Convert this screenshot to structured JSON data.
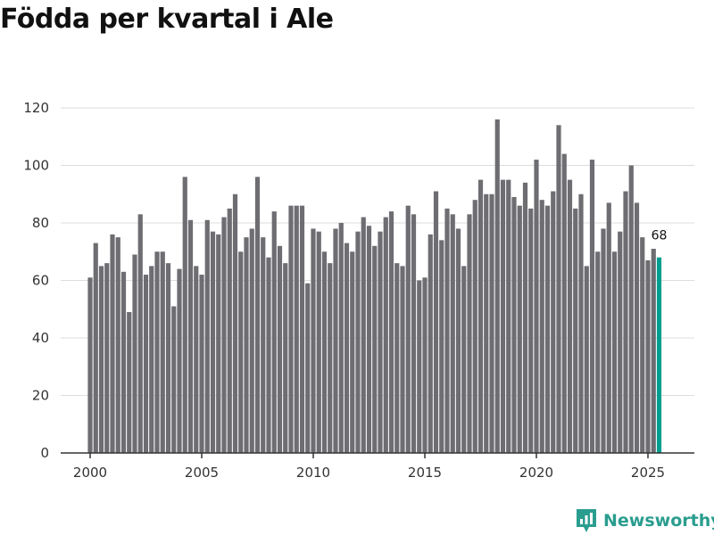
{
  "colors": {
    "bar": "#6e6d72",
    "highlight": "#009e8f",
    "grid": "#dddddd",
    "axis": "#333333",
    "brand": "#2a9d8f"
  },
  "brand": {
    "name": "Newsworthy",
    "icon": "newsworthy-logo-icon"
  },
  "chart_data": {
    "type": "bar",
    "title": "Födda per kvartal i Ale",
    "xlabel": "",
    "ylabel": "",
    "ylim": [
      0,
      120
    ],
    "yticks": [
      0,
      20,
      40,
      60,
      80,
      100,
      120
    ],
    "grid": true,
    "xticks": [
      {
        "label": "2000",
        "year": 2000
      },
      {
        "label": "2005",
        "year": 2005
      },
      {
        "label": "2010",
        "year": 2010
      },
      {
        "label": "2015",
        "year": 2015
      },
      {
        "label": "2020",
        "year": 2020
      },
      {
        "label": "2025",
        "year": 2025
      }
    ],
    "start_year": 2000,
    "periods_per_year": 4,
    "categories": [
      "2000 K1",
      "2000 K2",
      "2000 K3",
      "2000 K4",
      "2001 K1",
      "2001 K2",
      "2001 K3",
      "2001 K4",
      "2002 K1",
      "2002 K2",
      "2002 K3",
      "2002 K4",
      "2003 K1",
      "2003 K2",
      "2003 K3",
      "2003 K4",
      "2004 K1",
      "2004 K2",
      "2004 K3",
      "2004 K4",
      "2005 K1",
      "2005 K2",
      "2005 K3",
      "2005 K4",
      "2006 K1",
      "2006 K2",
      "2006 K3",
      "2006 K4",
      "2007 K1",
      "2007 K2",
      "2007 K3",
      "2007 K4",
      "2008 K1",
      "2008 K2",
      "2008 K3",
      "2008 K4",
      "2009 K1",
      "2009 K2",
      "2009 K3",
      "2009 K4",
      "2010 K1",
      "2010 K2",
      "2010 K3",
      "2010 K4",
      "2011 K1",
      "2011 K2",
      "2011 K3",
      "2011 K4",
      "2012 K1",
      "2012 K2",
      "2012 K3",
      "2012 K4",
      "2013 K1",
      "2013 K2",
      "2013 K3",
      "2013 K4",
      "2014 K1",
      "2014 K2",
      "2014 K3",
      "2014 K4",
      "2015 K1",
      "2015 K2",
      "2015 K3",
      "2015 K4",
      "2016 K1",
      "2016 K2",
      "2016 K3",
      "2016 K4",
      "2017 K1",
      "2017 K2",
      "2017 K3",
      "2017 K4",
      "2018 K1",
      "2018 K2",
      "2018 K3",
      "2018 K4",
      "2019 K1",
      "2019 K2",
      "2019 K3",
      "2019 K4",
      "2020 K1",
      "2020 K2",
      "2020 K3",
      "2020 K4",
      "2021 K1",
      "2021 K2",
      "2021 K3",
      "2021 K4",
      "2022 K1",
      "2022 K2",
      "2022 K3",
      "2022 K4",
      "2023 K1",
      "2023 K2",
      "2023 K3",
      "2023 K4",
      "2024 K1",
      "2024 K2",
      "2024 K3",
      "2024 K4",
      "2025 K1",
      "2025 K2",
      "2025 K3"
    ],
    "values": [
      61,
      73,
      65,
      66,
      76,
      75,
      63,
      49,
      69,
      83,
      62,
      65,
      70,
      70,
      66,
      51,
      64,
      96,
      81,
      65,
      62,
      81,
      77,
      76,
      82,
      85,
      90,
      70,
      75,
      78,
      96,
      75,
      68,
      84,
      72,
      66,
      86,
      86,
      86,
      59,
      78,
      77,
      70,
      66,
      78,
      80,
      73,
      70,
      77,
      82,
      79,
      72,
      77,
      82,
      84,
      66,
      65,
      86,
      83,
      60,
      61,
      76,
      91,
      74,
      85,
      83,
      78,
      65,
      83,
      88,
      95,
      90,
      90,
      116,
      95,
      95,
      89,
      86,
      94,
      85,
      102,
      88,
      86,
      91,
      114,
      104,
      95,
      85,
      90,
      65,
      102,
      70,
      78,
      87,
      70,
      77,
      91,
      100,
      87,
      75,
      67,
      71,
      68
    ],
    "highlight_index": 102,
    "annotations": [
      {
        "index": 102,
        "text": "68"
      }
    ]
  }
}
